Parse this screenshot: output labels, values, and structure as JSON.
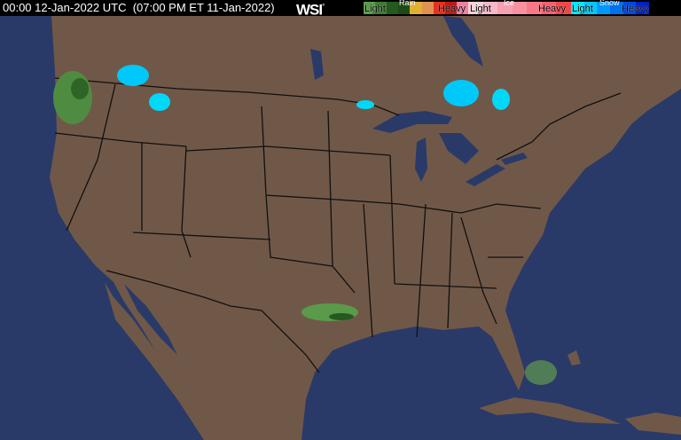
{
  "header": {
    "timestamp": "00:00 12-Jan-2022 UTC  (07:00 PM ET 11-Jan-2022)",
    "logo": "WSI",
    "logo_mark": "°"
  },
  "legend": [
    {
      "name": "Rain",
      "light": "Light",
      "heavy": "Heavy",
      "colors": [
        "#5a9a4a",
        "#3f7a34",
        "#245a20",
        "#1e4a18",
        "#e0b030",
        "#e09050",
        "#e83020",
        "#c01818",
        "#f080a0"
      ]
    },
    {
      "name": "Ice",
      "light": "Light",
      "heavy": "Heavy",
      "colors": [
        "#f8d0d8",
        "#f8b8c8",
        "#f8a0b0",
        "#f890a0",
        "#f87888",
        "#f86070",
        "#f04848"
      ]
    },
    {
      "name": "Snow",
      "light": "Light",
      "heavy": "Heavy",
      "colors": [
        "#00e8f8",
        "#00c8f8",
        "#0098f8",
        "#0070f0",
        "#0048e0",
        "#0020c8"
      ]
    }
  ],
  "colors": {
    "land": "#705848",
    "water": "#2a3a68",
    "borders": "#101010",
    "header": "#000000"
  }
}
